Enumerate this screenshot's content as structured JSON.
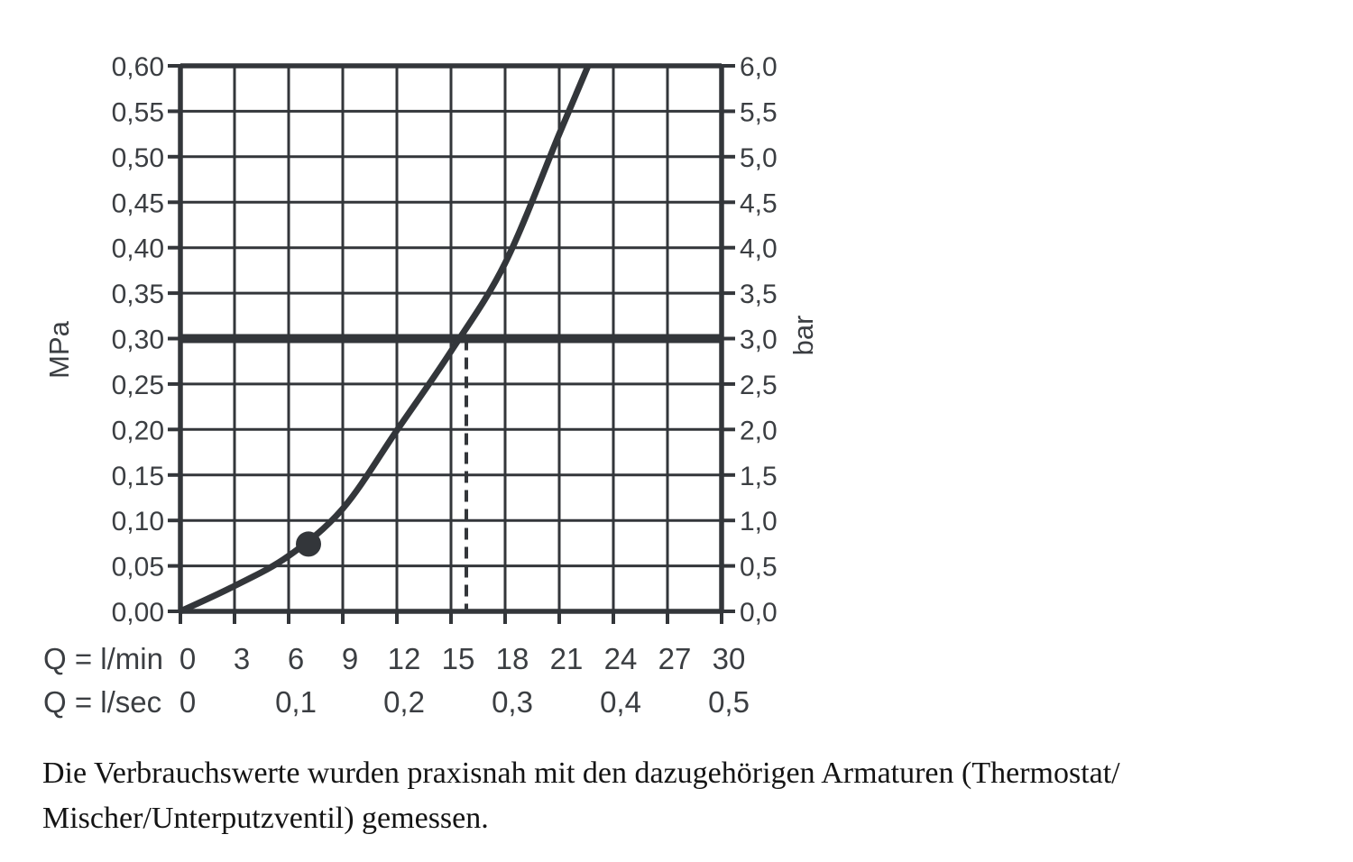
{
  "chart_data": {
    "type": "line",
    "title": "",
    "grid": true,
    "legend": "none",
    "x_axis": {
      "range_lmin": [
        0,
        30
      ],
      "rows": [
        {
          "label": "Q = l/min",
          "ticks": [
            {
              "v": 0,
              "t": "0"
            },
            {
              "v": 3,
              "t": "3"
            },
            {
              "v": 6,
              "t": "6"
            },
            {
              "v": 9,
              "t": "9"
            },
            {
              "v": 12,
              "t": "12"
            },
            {
              "v": 15,
              "t": "15"
            },
            {
              "v": 18,
              "t": "18"
            },
            {
              "v": 21,
              "t": "21"
            },
            {
              "v": 24,
              "t": "24"
            },
            {
              "v": 27,
              "t": "27"
            },
            {
              "v": 30,
              "t": "30"
            }
          ]
        },
        {
          "label": "Q = l/sec",
          "ticks": [
            {
              "v": 0,
              "t": "0"
            },
            {
              "v": 6,
              "t": "0,1"
            },
            {
              "v": 12,
              "t": "0,2"
            },
            {
              "v": 18,
              "t": "0,3"
            },
            {
              "v": 24,
              "t": "0,4"
            },
            {
              "v": 30,
              "t": "0,5"
            }
          ]
        }
      ]
    },
    "y_axis_left": {
      "unit": "MPa",
      "range": [
        0,
        0.6
      ],
      "ticks": [
        {
          "v": 0.6,
          "t": "0,60"
        },
        {
          "v": 0.55,
          "t": "0,55"
        },
        {
          "v": 0.5,
          "t": "0,50"
        },
        {
          "v": 0.45,
          "t": "0,45"
        },
        {
          "v": 0.4,
          "t": "0,40"
        },
        {
          "v": 0.35,
          "t": "0,35"
        },
        {
          "v": 0.3,
          "t": "0,30"
        },
        {
          "v": 0.25,
          "t": "0,25"
        },
        {
          "v": 0.2,
          "t": "0,20"
        },
        {
          "v": 0.15,
          "t": "0,15"
        },
        {
          "v": 0.1,
          "t": "0,10"
        },
        {
          "v": 0.05,
          "t": "0,05"
        },
        {
          "v": 0.0,
          "t": "0,00"
        }
      ]
    },
    "y_axis_right": {
      "unit": "bar",
      "range": [
        0,
        6
      ],
      "ticks": [
        {
          "v": 6.0,
          "t": "6,0"
        },
        {
          "v": 5.5,
          "t": "5,5"
        },
        {
          "v": 5.0,
          "t": "5,0"
        },
        {
          "v": 4.5,
          "t": "4,5"
        },
        {
          "v": 4.0,
          "t": "4,0"
        },
        {
          "v": 3.5,
          "t": "3,5"
        },
        {
          "v": 3.0,
          "t": "3,0"
        },
        {
          "v": 2.5,
          "t": "2,5"
        },
        {
          "v": 2.0,
          "t": "2,0"
        },
        {
          "v": 1.5,
          "t": "1,5"
        },
        {
          "v": 1.0,
          "t": "1,0"
        },
        {
          "v": 0.5,
          "t": "0,5"
        },
        {
          "v": 0.0,
          "t": "0,0"
        }
      ]
    },
    "series": [
      {
        "name": "flow-pressure-curve",
        "points_lmin_mpa": [
          [
            0,
            0
          ],
          [
            3,
            0.028
          ],
          [
            6,
            0.061
          ],
          [
            9,
            0.113
          ],
          [
            12,
            0.199
          ],
          [
            15,
            0.286
          ],
          [
            18,
            0.383
          ],
          [
            21,
            0.525
          ],
          [
            22.6,
            0.6
          ]
        ]
      }
    ],
    "marker_point_lmin_mpa": [
      7.1,
      0.074
    ],
    "reference_line_mpa": 0.3,
    "guide_line": {
      "q_lmin": 15.85,
      "from_mpa": 0,
      "to_mpa": 0.3,
      "style": "dashed"
    },
    "colors": {
      "line": "#33363a",
      "text": "#3b3e42",
      "caption": "#141414",
      "background": "#ffffff"
    }
  },
  "caption": {
    "lines": [
      "Die Verbrauchswerte wurden praxisnah mit den dazugehörigen Armaturen (Thermostat/",
      "Mischer/Unterputzventil) gemessen."
    ]
  }
}
